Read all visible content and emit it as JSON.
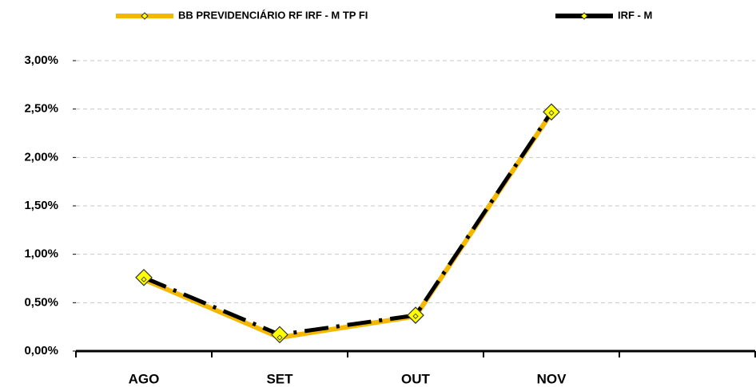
{
  "chart_data": {
    "type": "line",
    "categories": [
      "AGO",
      "SET",
      "OUT",
      "NOV",
      null
    ],
    "series": [
      {
        "name": "BB PREVIDENCIÁRIO RF IRF - M TP FI",
        "color": "#f5b800",
        "values": [
          0.74,
          0.14,
          0.36,
          2.46,
          null
        ]
      },
      {
        "name": "IRF - M",
        "color": "#000000",
        "values": [
          0.76,
          0.17,
          0.37,
          2.47,
          null
        ]
      }
    ],
    "ylim": [
      0,
      3
    ],
    "yticks": [
      {
        "value": 0,
        "label": "0,00%"
      },
      {
        "value": 0.5,
        "label": "0,50%"
      },
      {
        "value": 1,
        "label": "1,00%"
      },
      {
        "value": 1.5,
        "label": "1,50%"
      },
      {
        "value": 2,
        "label": "2,00%"
      },
      {
        "value": 2.5,
        "label": "2,50%"
      },
      {
        "value": 3,
        "label": "3,00%"
      }
    ],
    "grid": true,
    "legend": "top"
  }
}
